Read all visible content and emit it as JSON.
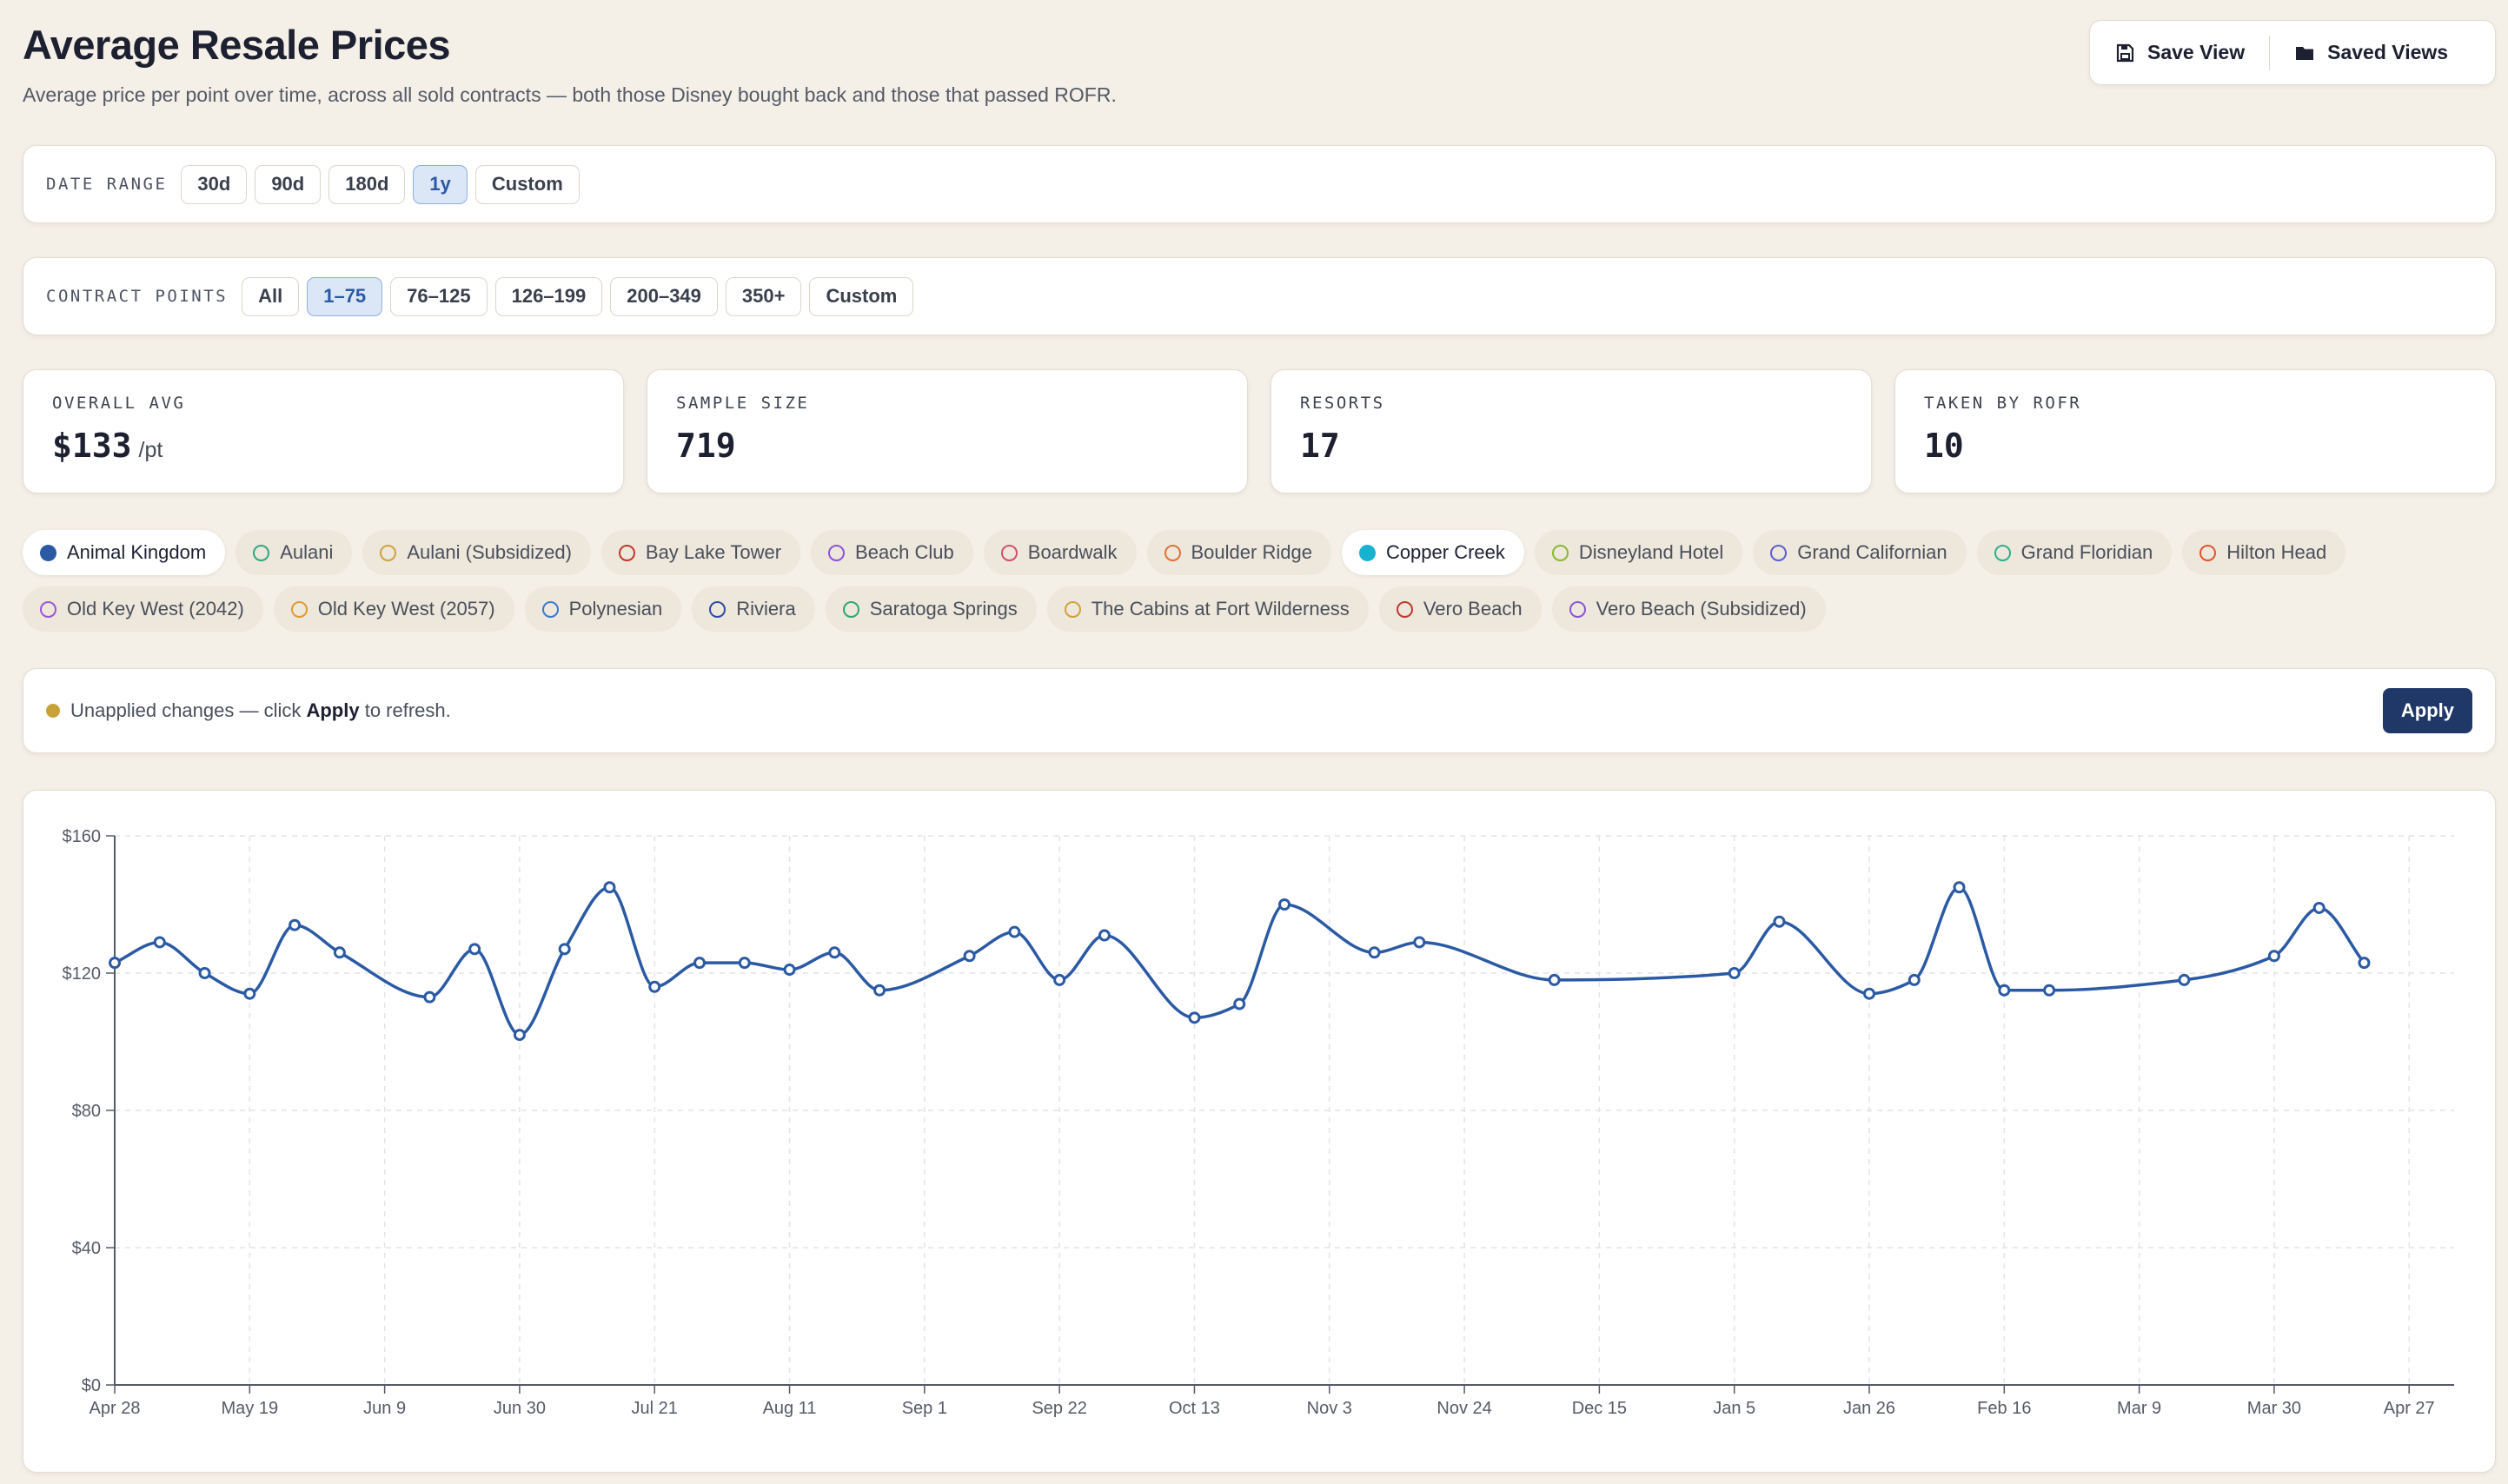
{
  "header": {
    "title": "Average Resale Prices",
    "subtitle": "Average price per point over time, across all sold contracts — both those Disney bought back and those that passed ROFR."
  },
  "actions": {
    "save_view": "Save View",
    "saved_views": "Saved Views"
  },
  "date_range": {
    "label": "DATE RANGE",
    "options": [
      "30d",
      "90d",
      "180d",
      "1y",
      "Custom"
    ],
    "selected": "1y"
  },
  "contract_points": {
    "label": "CONTRACT POINTS",
    "options": [
      "All",
      "1–75",
      "76–125",
      "126–199",
      "200–349",
      "350+",
      "Custom"
    ],
    "selected": "1–75"
  },
  "stats": {
    "overall_avg": {
      "label": "OVERALL AVG",
      "value": "$133",
      "unit": "/pt"
    },
    "sample_size": {
      "label": "SAMPLE SIZE",
      "value": "719"
    },
    "resorts": {
      "label": "RESORTS",
      "value": "17"
    },
    "rofr": {
      "label": "TAKEN BY ROFR",
      "value": "10"
    }
  },
  "resorts": [
    {
      "name": "Animal Kingdom",
      "color": "#2b5aa4",
      "selected": true
    },
    {
      "name": "Aulani",
      "color": "#2ea882",
      "selected": false
    },
    {
      "name": "Aulani (Subsidized)",
      "color": "#d0a23a",
      "selected": false
    },
    {
      "name": "Bay Lake Tower",
      "color": "#c0392b",
      "selected": false
    },
    {
      "name": "Beach Club",
      "color": "#8a55d6",
      "selected": false
    },
    {
      "name": "Boardwalk",
      "color": "#d0506e",
      "selected": false
    },
    {
      "name": "Boulder Ridge",
      "color": "#e07035",
      "selected": false
    },
    {
      "name": "Copper Creek",
      "color": "#17b2d0",
      "selected": true
    },
    {
      "name": "Disneyland Hotel",
      "color": "#8ab82e",
      "selected": false
    },
    {
      "name": "Grand Californian",
      "color": "#5a5fd0",
      "selected": false
    },
    {
      "name": "Grand Floridian",
      "color": "#2eb08a",
      "selected": false
    },
    {
      "name": "Hilton Head",
      "color": "#e0552e",
      "selected": false
    },
    {
      "name": "Old Key West (2042)",
      "color": "#9a55d6",
      "selected": false
    },
    {
      "name": "Old Key West (2057)",
      "color": "#e09a2e",
      "selected": false
    },
    {
      "name": "Polynesian",
      "color": "#3a7ad0",
      "selected": false
    },
    {
      "name": "Riviera",
      "color": "#2b4aa4",
      "selected": false
    },
    {
      "name": "Saratoga Springs",
      "color": "#2ea86a",
      "selected": false
    },
    {
      "name": "The Cabins at Fort Wilderness",
      "color": "#d0a23a",
      "selected": false
    },
    {
      "name": "Vero Beach",
      "color": "#c0392b",
      "selected": false
    },
    {
      "name": "Vero Beach (Subsidized)",
      "color": "#8a55d6",
      "selected": false
    }
  ],
  "notice": {
    "prefix": "Unapplied changes — click ",
    "strong": "Apply",
    "suffix": " to refresh.",
    "dot_color": "#c9a13a",
    "apply_label": "Apply"
  },
  "chart_data": {
    "type": "line",
    "x_dates": [
      "2024-04-28",
      "2024-05-05",
      "2024-05-12",
      "2024-05-19",
      "2024-05-26",
      "2024-06-02",
      "2024-06-16",
      "2024-06-23",
      "2024-06-30",
      "2024-07-07",
      "2024-07-14",
      "2024-07-21",
      "2024-07-28",
      "2024-08-04",
      "2024-08-11",
      "2024-08-18",
      "2024-08-25",
      "2024-09-08",
      "2024-09-15",
      "2024-09-22",
      "2024-09-29",
      "2024-10-13",
      "2024-10-20",
      "2024-10-27",
      "2024-11-10",
      "2024-11-17",
      "2024-12-08",
      "2025-01-05",
      "2025-01-12",
      "2025-01-26",
      "2025-02-02",
      "2025-02-09",
      "2025-02-16",
      "2025-02-23",
      "2025-03-16",
      "2025-03-30",
      "2025-04-06",
      "2025-04-13"
    ],
    "values": [
      123,
      129,
      120,
      114,
      134,
      126,
      113,
      127,
      102,
      127,
      145,
      116,
      123,
      123,
      121,
      126,
      115,
      125,
      132,
      118,
      131,
      107,
      111,
      140,
      126,
      129,
      118,
      120,
      135,
      114,
      118,
      145,
      115,
      115,
      118,
      125,
      139,
      123
    ],
    "x_tick_labels": [
      "Apr 28",
      "May 19",
      "Jun 9",
      "Jun 30",
      "Jul 21",
      "Aug 11",
      "Sep 1",
      "Sep 22",
      "Oct 13",
      "Nov 3",
      "Nov 24",
      "Dec 15",
      "Jan 5",
      "Jan 26",
      "Feb 16",
      "Mar 9",
      "Mar 30",
      "Apr 27"
    ],
    "y_tick_labels": [
      "$0",
      "$40",
      "$80",
      "$120",
      "$160"
    ],
    "ylim": [
      0,
      160
    ],
    "grid": true,
    "line_color": "#2b5aa4"
  }
}
